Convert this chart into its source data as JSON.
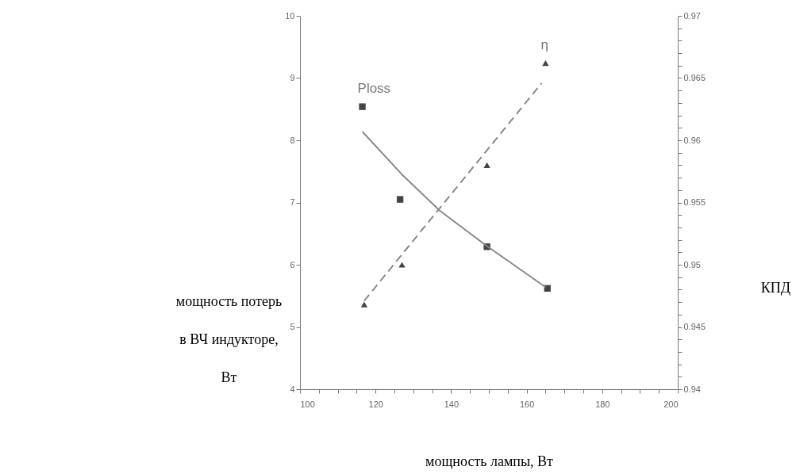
{
  "chart_data": {
    "type": "scatter",
    "xlabel": "мощность лампы, Вт",
    "ylabel": "мощность потерь\nв ВЧ индукторе,\nВт",
    "y2label": "КПД",
    "xlim": [
      100,
      200
    ],
    "xticks": [
      100,
      {
        "value": 105,
        "label": null
      },
      {
        "value": 110,
        "label": null
      },
      {
        "value": 115,
        "label": null
      },
      120,
      {
        "value": 125,
        "label": null
      },
      {
        "value": 130,
        "label": null
      },
      {
        "value": 135,
        "label": null
      },
      140,
      {
        "value": 145,
        "label": null
      },
      {
        "value": 150,
        "label": null
      },
      {
        "value": 155,
        "label": null
      },
      160,
      {
        "value": 165,
        "label": null
      },
      {
        "value": 170,
        "label": null
      },
      {
        "value": 175,
        "label": null
      },
      180,
      {
        "value": 185,
        "label": null
      },
      {
        "value": 190,
        "label": null
      },
      {
        "value": 195,
        "label": null
      },
      200
    ],
    "ylim": [
      4,
      10
    ],
    "yticks": [
      4,
      5,
      6,
      7,
      8,
      9,
      10
    ],
    "y2lim": [
      0.94,
      0.97
    ],
    "y2ticks": [
      0.94,
      {
        "value": 0.941,
        "label": null
      },
      {
        "value": 0.942,
        "label": null
      },
      {
        "value": 0.943,
        "label": null
      },
      {
        "value": 0.944,
        "label": null
      },
      0.945,
      {
        "value": 0.946,
        "label": null
      },
      {
        "value": 0.947,
        "label": null
      },
      {
        "value": 0.948,
        "label": null
      },
      {
        "value": 0.949,
        "label": null
      },
      0.95,
      {
        "value": 0.951,
        "label": null
      },
      {
        "value": 0.952,
        "label": null
      },
      {
        "value": 0.953,
        "label": null
      },
      {
        "value": 0.954,
        "label": null
      },
      0.955,
      {
        "value": 0.956,
        "label": null
      },
      {
        "value": 0.957,
        "label": null
      },
      {
        "value": 0.958,
        "label": null
      },
      {
        "value": 0.959,
        "label": null
      },
      0.96,
      {
        "value": 0.961,
        "label": null
      },
      {
        "value": 0.962,
        "label": null
      },
      {
        "value": 0.963,
        "label": null
      },
      {
        "value": 0.964,
        "label": null
      },
      0.965,
      {
        "value": 0.966,
        "label": null
      },
      {
        "value": 0.967,
        "label": null
      },
      {
        "value": 0.968,
        "label": null
      },
      {
        "value": 0.969,
        "label": null
      },
      0.97
    ],
    "grid": false,
    "series": [
      {
        "name": "Ploss",
        "marker": "square",
        "color": "#444444",
        "x": [
          116.5,
          126.5,
          149.5,
          165.5
        ],
        "values": [
          8.54,
          7.05,
          6.29,
          5.62
        ]
      },
      {
        "type": "line",
        "line_style": "solid",
        "color": "#888888",
        "x": [
          116.5,
          127,
          137,
          149.5,
          165
        ],
        "values": [
          8.14,
          7.45,
          6.87,
          6.3,
          5.64
        ]
      },
      {
        "name": "η",
        "marker": "triangle",
        "axis": "y2",
        "color": "#444444",
        "x": [
          117,
          127,
          149.5,
          165
        ],
        "values": [
          0.9468,
          0.95,
          0.958,
          0.9662
        ]
      },
      {
        "type": "line",
        "line_style": "dashed",
        "axis": "y2",
        "color": "#888888",
        "x": [
          117,
          164
        ],
        "values": [
          0.9471,
          0.9646
        ]
      }
    ]
  }
}
